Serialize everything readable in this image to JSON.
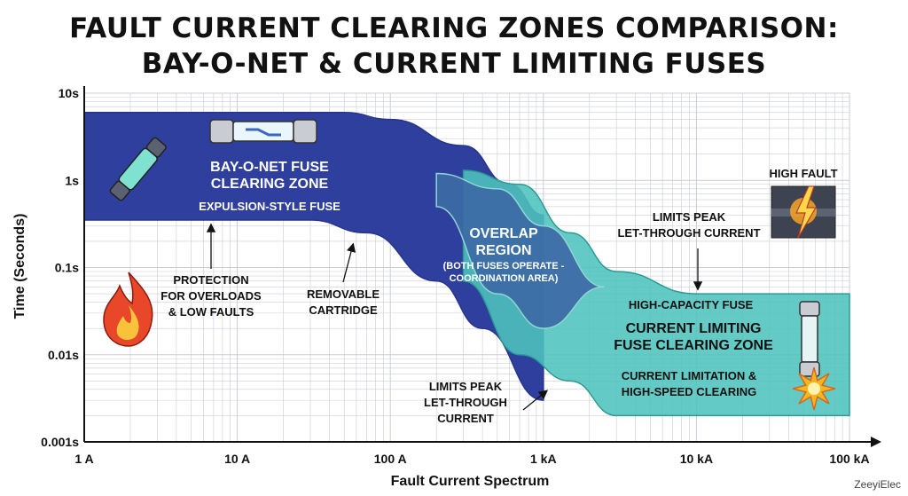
{
  "chart_data": {
    "type": "area",
    "title": [
      "FAULT CURRENT CLEARING ZONES COMPARISON:",
      "BAY-O-NET & CURRENT LIMITING FUSES"
    ],
    "xlabel": "Fault Current Spectrum",
    "ylabel": "Time (Seconds)",
    "x_scale": "log",
    "y_scale": "log",
    "xlim": [
      1,
      100000
    ],
    "ylim": [
      0.001,
      10
    ],
    "x_ticks": [
      {
        "value": 1,
        "label": "1 A"
      },
      {
        "value": 10,
        "label": "10 A"
      },
      {
        "value": 100,
        "label": "100 A"
      },
      {
        "value": 1000,
        "label": "1 kA"
      },
      {
        "value": 10000,
        "label": "10 kA"
      },
      {
        "value": 100000,
        "label": "100 kA"
      }
    ],
    "y_ticks": [
      {
        "value": 10,
        "label": "10s"
      },
      {
        "value": 1,
        "label": "1s"
      },
      {
        "value": 0.1,
        "label": "0.1s"
      },
      {
        "value": 0.01,
        "label": "0.01s"
      },
      {
        "value": 0.001,
        "label": "0.001s"
      }
    ],
    "grid": true,
    "zones": [
      {
        "id": "bayonet",
        "color": "#2e3f9e",
        "upper": [
          [
            1,
            6
          ],
          [
            50,
            6
          ],
          [
            100,
            5
          ],
          [
            300,
            2.5
          ],
          [
            600,
            0.9
          ],
          [
            1000,
            0.4
          ]
        ],
        "lower": [
          [
            1,
            0.35
          ],
          [
            30,
            0.35
          ],
          [
            70,
            0.25
          ],
          [
            200,
            0.07
          ],
          [
            400,
            0.02
          ],
          [
            1000,
            0.003
          ]
        ]
      },
      {
        "id": "current-limiting",
        "color": "#4fc3bd",
        "upper": [
          [
            300,
            1.3
          ],
          [
            700,
            0.9
          ],
          [
            1500,
            0.25
          ],
          [
            3000,
            0.09
          ],
          [
            10000,
            0.05
          ],
          [
            100000,
            0.05
          ]
        ],
        "lower": [
          [
            300,
            0.07
          ],
          [
            700,
            0.01
          ],
          [
            1500,
            0.005
          ],
          [
            3000,
            0.002
          ],
          [
            10000,
            0.002
          ],
          [
            100000,
            0.002
          ]
        ]
      },
      {
        "id": "overlap",
        "color": "#3d6aa6",
        "upper": [
          [
            200,
            1.2
          ],
          [
            500,
            0.8
          ],
          [
            1000,
            0.3
          ],
          [
            2500,
            0.06
          ]
        ],
        "lower": [
          [
            200,
            0.5
          ],
          [
            500,
            0.05
          ],
          [
            1000,
            0.02
          ],
          [
            2500,
            0.06
          ]
        ]
      }
    ],
    "annotations": {
      "bayonet_zone": [
        "BAY-O-NET FUSE",
        "CLEARING ZONE"
      ],
      "bayonet_sub": "EXPULSION-STYLE FUSE",
      "overlap_title": [
        "OVERLAP",
        "REGION"
      ],
      "overlap_sub": [
        "(BOTH FUSES OPERATE -",
        "COORDINATION AREA)"
      ],
      "protection": [
        "PROTECTION",
        "FOR OVERLOADS",
        "& LOW FAULTS"
      ],
      "removable": [
        "REMOVABLE",
        "CARTRIDGE"
      ],
      "limits_peak_upper": [
        "LIMITS PEAK",
        "LET-THROUGH CURRENT"
      ],
      "high_fault": "HIGH FAULT",
      "high_capacity": "HIGH-CAPACITY FUSE",
      "cl_zone": [
        "CURRENT LIMITING",
        "FUSE CLEARING ZONE"
      ],
      "cl_sub": [
        "CURRENT LIMITATION &",
        "HIGH-SPEED CLEARING"
      ],
      "limits_peak_lower": [
        "LIMITS PEAK",
        "LET-THROUGH",
        "CURRENT"
      ]
    }
  },
  "colors": {
    "bayonet": "#2e3f9e",
    "current_limiting": "#4fc3bd",
    "overlap": "#3d6aa6",
    "grid": "#c9cdd3",
    "axis": "#111111"
  },
  "credit": "ZeeyiElec"
}
